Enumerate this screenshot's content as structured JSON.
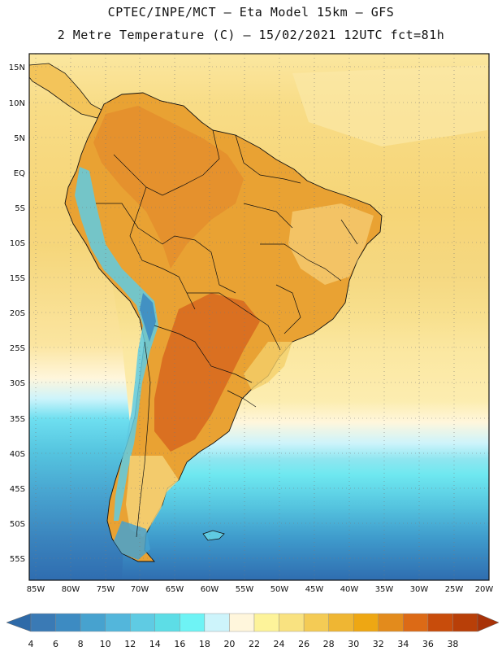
{
  "title": {
    "line1": "CPTEC/INPE/MCT –  Eta Model 15km – GFS",
    "line2": "2 Metre Temperature (C) – 15/02/2021 12UTC fct=81h"
  },
  "map": {
    "lat_labels": [
      "15N",
      "10N",
      "5N",
      "EQ",
      "5S",
      "10S",
      "15S",
      "20S",
      "25S",
      "30S",
      "35S",
      "40S",
      "45S",
      "50S",
      "55S"
    ],
    "lon_labels": [
      "85W",
      "80W",
      "75W",
      "70W",
      "65W",
      "60W",
      "55W",
      "50W",
      "45W",
      "40W",
      "35W",
      "30W",
      "25W",
      "20W"
    ],
    "lat_range": [
      17,
      -58
    ],
    "lon_range": [
      -87,
      -20
    ],
    "continent": "South America",
    "features": [
      "land temperature shading",
      "ocean temperature shading",
      "country boundaries",
      "dotted graticule"
    ]
  },
  "colorbar": {
    "labels": [
      "4",
      "6",
      "8",
      "10",
      "12",
      "14",
      "16",
      "18",
      "20",
      "22",
      "24",
      "26",
      "28",
      "30",
      "32",
      "34",
      "36",
      "38"
    ],
    "colors": [
      "#3a7ab5",
      "#3d8bc2",
      "#47a2cf",
      "#53b6db",
      "#5fcbe3",
      "#5ddde6",
      "#6ef3f5",
      "#cdf4fb",
      "#fff6dc",
      "#fdf39a",
      "#f9e280",
      "#f4cb55",
      "#efb633",
      "#eea713",
      "#e38b1c",
      "#dc6a16",
      "#c84c0b",
      "#b83f08"
    ],
    "low_arrow_color": "#2e6aa8",
    "high_arrow_color": "#a83208"
  }
}
